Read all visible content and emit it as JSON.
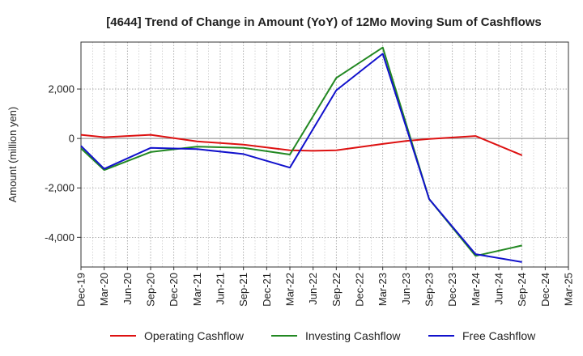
{
  "chart_data": {
    "type": "line",
    "title": "[4644]  Trend of Change in Amount (YoY) of 12Mo Moving Sum of Cashflows",
    "xlabel": "",
    "ylabel": "Amount (million yen)",
    "ylim": [
      -5200,
      3900
    ],
    "yticks": [
      2000,
      0,
      -2000,
      -4000
    ],
    "ytick_labels": [
      "2,000",
      "0",
      "-2,000",
      "-4,000"
    ],
    "categories": [
      "Dec-19",
      "Mar-20",
      "Jun-20",
      "Sep-20",
      "Dec-20",
      "Mar-21",
      "Jun-21",
      "Sep-21",
      "Dec-21",
      "Mar-22",
      "Jun-22",
      "Sep-22",
      "Dec-22",
      "Mar-23",
      "Jun-23",
      "Sep-23",
      "Dec-23",
      "Mar-24",
      "Jun-24",
      "Sep-24",
      "Dec-24",
      "Mar-25"
    ],
    "grid": true,
    "legend_position": "bottom",
    "series": [
      {
        "name": "Operating Cashflow",
        "color": "#dd1111",
        "values": [
          150,
          50,
          null,
          150,
          null,
          -120,
          null,
          -250,
          null,
          -480,
          -500,
          -480,
          null,
          -220,
          -100,
          -20,
          null,
          100,
          null,
          -680,
          null,
          null
        ]
      },
      {
        "name": "Investing Cashflow",
        "color": "#228822",
        "values": [
          -400,
          -1280,
          null,
          -550,
          null,
          -330,
          null,
          -380,
          null,
          -650,
          null,
          2450,
          null,
          3680,
          null,
          -2450,
          null,
          -4750,
          null,
          -4330,
          null,
          null
        ]
      },
      {
        "name": "Free Cashflow",
        "color": "#1111cc",
        "values": [
          -300,
          -1230,
          null,
          -380,
          null,
          -430,
          null,
          -630,
          null,
          -1180,
          null,
          1950,
          null,
          3430,
          null,
          -2450,
          null,
          -4680,
          null,
          -5000,
          null,
          null
        ]
      }
    ]
  }
}
